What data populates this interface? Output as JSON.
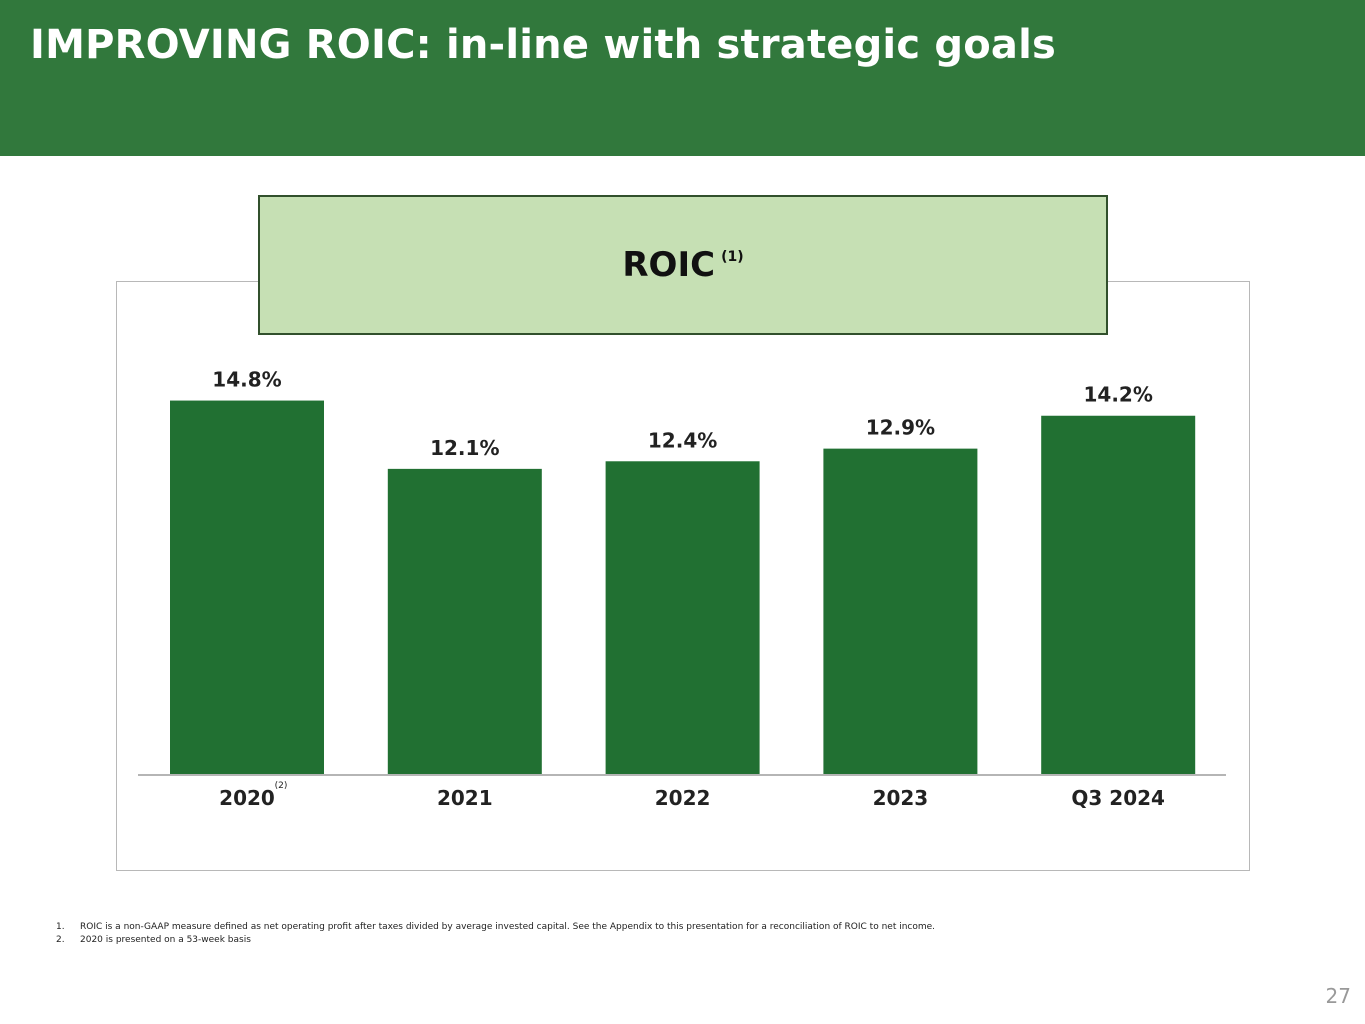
{
  "header": {
    "title": "IMPROVING ROIC: in-line with strategic goals"
  },
  "chart_data": {
    "type": "bar",
    "title": "ROIC",
    "title_footnote": "(1)",
    "categories": [
      "2020",
      "2021",
      "2022",
      "2023",
      "Q3 2024"
    ],
    "category_footnotes": [
      "(2)",
      "",
      "",
      "",
      ""
    ],
    "values": [
      14.8,
      12.1,
      12.4,
      12.9,
      14.2
    ],
    "value_labels": [
      "14.8%",
      "12.1%",
      "12.4%",
      "12.9%",
      "14.2%"
    ],
    "unit": "%",
    "ylim": [
      0,
      15
    ],
    "grid": false,
    "bar_color": "#217032"
  },
  "footnotes": [
    {
      "num": "1.",
      "text": "ROIC is a non-GAAP measure defined as net operating profit after taxes divided by average invested capital. See the Appendix to this presentation for a reconciliation of ROIC to net income."
    },
    {
      "num": "2.",
      "text": "2020 is presented on a 53-week basis"
    }
  ],
  "page_number": "27",
  "colors": {
    "header_bg": "#31783c",
    "title_box_bg": "#c6e0b4",
    "bar": "#217032"
  }
}
